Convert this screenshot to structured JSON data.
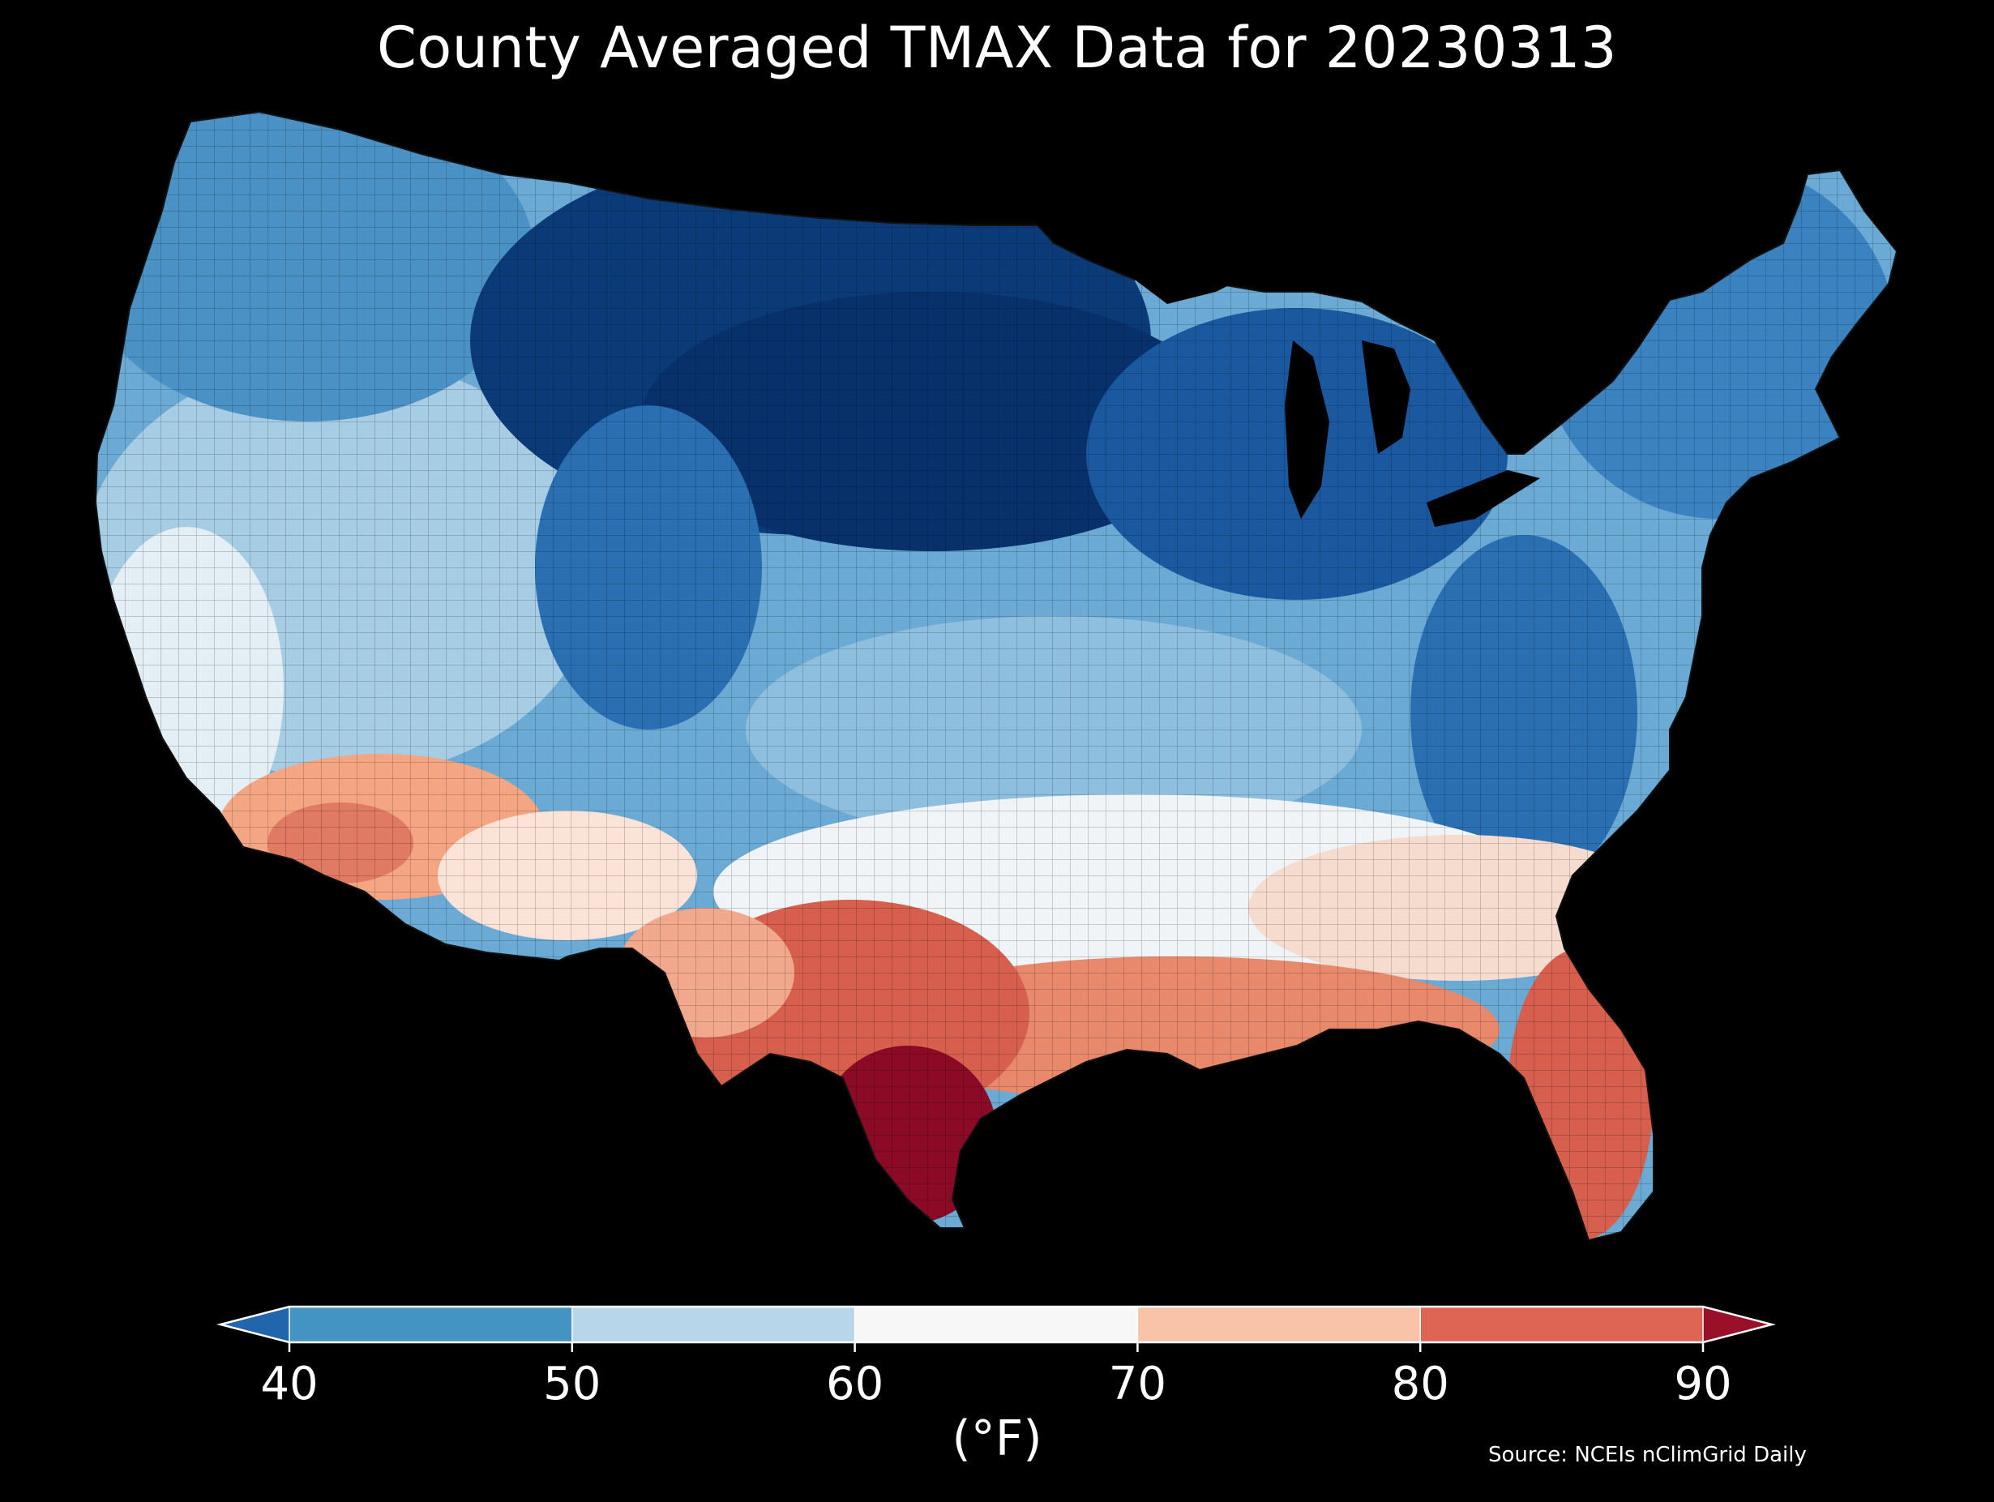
{
  "title": "County Averaged TMAX Data for 20230313",
  "source": "Source: NCEIs nClimGrid Daily",
  "map": {
    "background": "#000000",
    "region_fills": [
      {
        "region": "pacific-northwest",
        "color": "#4a91c5"
      },
      {
        "region": "northern-plains",
        "color": "#08306b"
      },
      {
        "region": "great-lakes",
        "color": "#0e4285"
      },
      {
        "region": "northeast",
        "color": "#3b83c0"
      },
      {
        "region": "mid-atlantic",
        "color": "#2a6fb2"
      },
      {
        "region": "central-plains",
        "color": "#5fa2cf"
      },
      {
        "region": "great-basin",
        "color": "#a7cde4"
      },
      {
        "region": "southwest-desert",
        "color": "#f4a582"
      },
      {
        "region": "texas-south",
        "color": "#d6604d"
      },
      {
        "region": "gulf-coast",
        "color": "#e8896c"
      },
      {
        "region": "florida",
        "color": "#d6604d"
      },
      {
        "region": "south-central",
        "color": "#f7f7f7"
      },
      {
        "region": "rio-grande",
        "color": "#8b0a26"
      }
    ]
  },
  "colorbar": {
    "unit": "(°F)",
    "ticks": [
      "40",
      "50",
      "60",
      "70",
      "80",
      "90"
    ],
    "under_color": "#2166ac",
    "over_color": "#9a1029",
    "bins": [
      {
        "from": 40,
        "to": 50,
        "color": "#4393c3"
      },
      {
        "from": 50,
        "to": 60,
        "color": "#b8d6e9"
      },
      {
        "from": 60,
        "to": 70,
        "color": "#f7f7f7"
      },
      {
        "from": 70,
        "to": 80,
        "color": "#f9c3a7"
      },
      {
        "from": 80,
        "to": 90,
        "color": "#de6553"
      }
    ]
  }
}
